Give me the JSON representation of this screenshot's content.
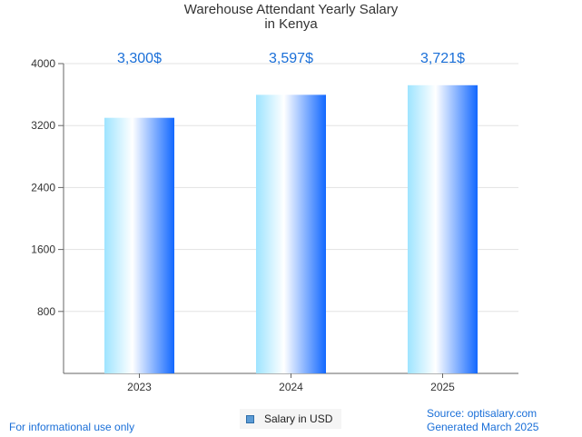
{
  "chart_data": {
    "type": "bar",
    "title_lines": [
      "Warehouse Attendant Yearly Salary",
      "in Kenya"
    ],
    "categories": [
      "2023",
      "2024",
      "2025"
    ],
    "series": [
      {
        "name": "Salary in USD",
        "values": [
          3300,
          3597,
          3721
        ]
      }
    ],
    "data_labels": [
      "3,300$",
      "3,597$",
      "3,721$"
    ],
    "y_ticks": [
      800,
      1600,
      2400,
      3200,
      4000
    ],
    "ylim": [
      0,
      4000
    ],
    "grid": true,
    "legend_position": "bottom-center",
    "bar_gradient": [
      "#9ee4ff",
      "#ffffff",
      "#1268ff"
    ],
    "label_color": "#1a6fd8"
  },
  "footer": {
    "left_note": "For informational use only",
    "source": "Source: optisalary.com",
    "generated": "Generated March 2025"
  }
}
